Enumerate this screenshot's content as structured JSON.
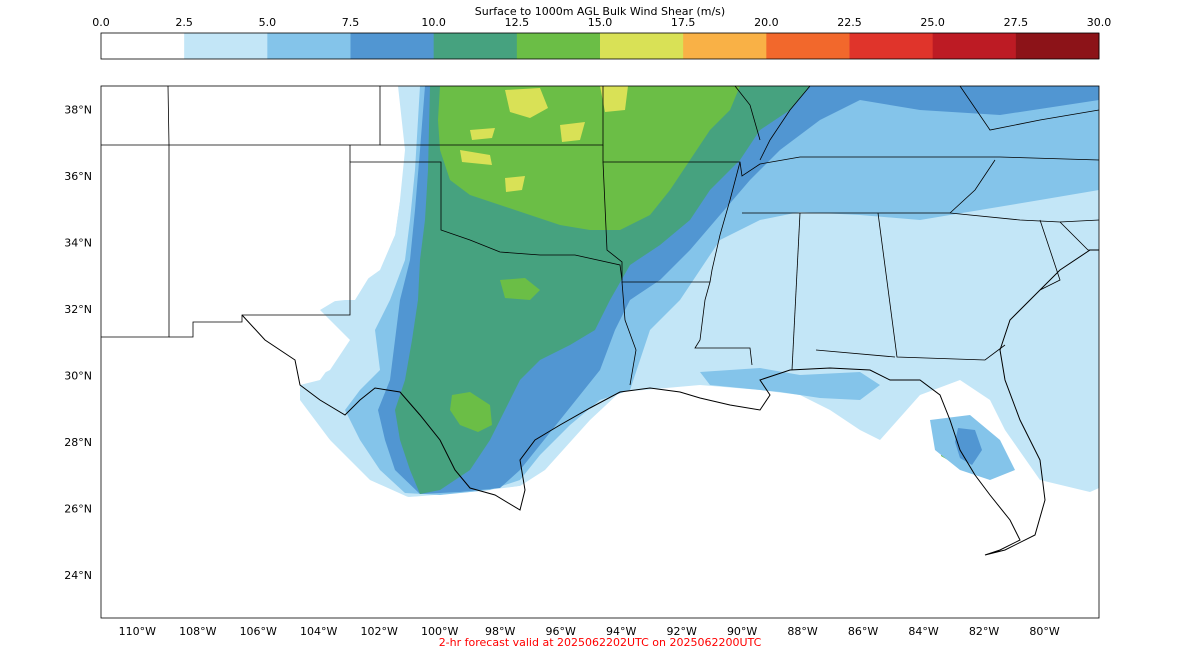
{
  "colorbar": {
    "title": "Surface to 1000m AGL Bulk Wind Shear (m/s)",
    "ticks": [
      "0.0",
      "2.5",
      "5.0",
      "7.5",
      "10.0",
      "12.5",
      "15.0",
      "17.5",
      "20.0",
      "22.5",
      "25.0",
      "27.5",
      "30.0"
    ],
    "colors": [
      "#ffffff",
      "#c3e6f7",
      "#84c4ea",
      "#5196d2",
      "#46a27f",
      "#6bbe46",
      "#d9e156",
      "#f9b146",
      "#f2682c",
      "#e0342b",
      "#bd1b24",
      "#8c1318"
    ]
  },
  "map": {
    "lat_labels": [
      "38°N",
      "36°N",
      "34°N",
      "32°N",
      "30°N",
      "28°N",
      "26°N",
      "24°N"
    ],
    "lon_labels": [
      "110°W",
      "108°W",
      "106°W",
      "104°W",
      "102°W",
      "100°W",
      "98°W",
      "96°W",
      "94°W",
      "92°W",
      "90°W",
      "88°W",
      "86°W",
      "84°W",
      "82°W",
      "80°W"
    ],
    "extent_lon": [
      -111.2,
      -78.2
    ],
    "extent_lat": [
      22.7,
      38.7
    ]
  },
  "footer": {
    "text": "2-hr forecast valid at 2025062202UTC on 2025062200UTC",
    "color": "#ff0000"
  }
}
